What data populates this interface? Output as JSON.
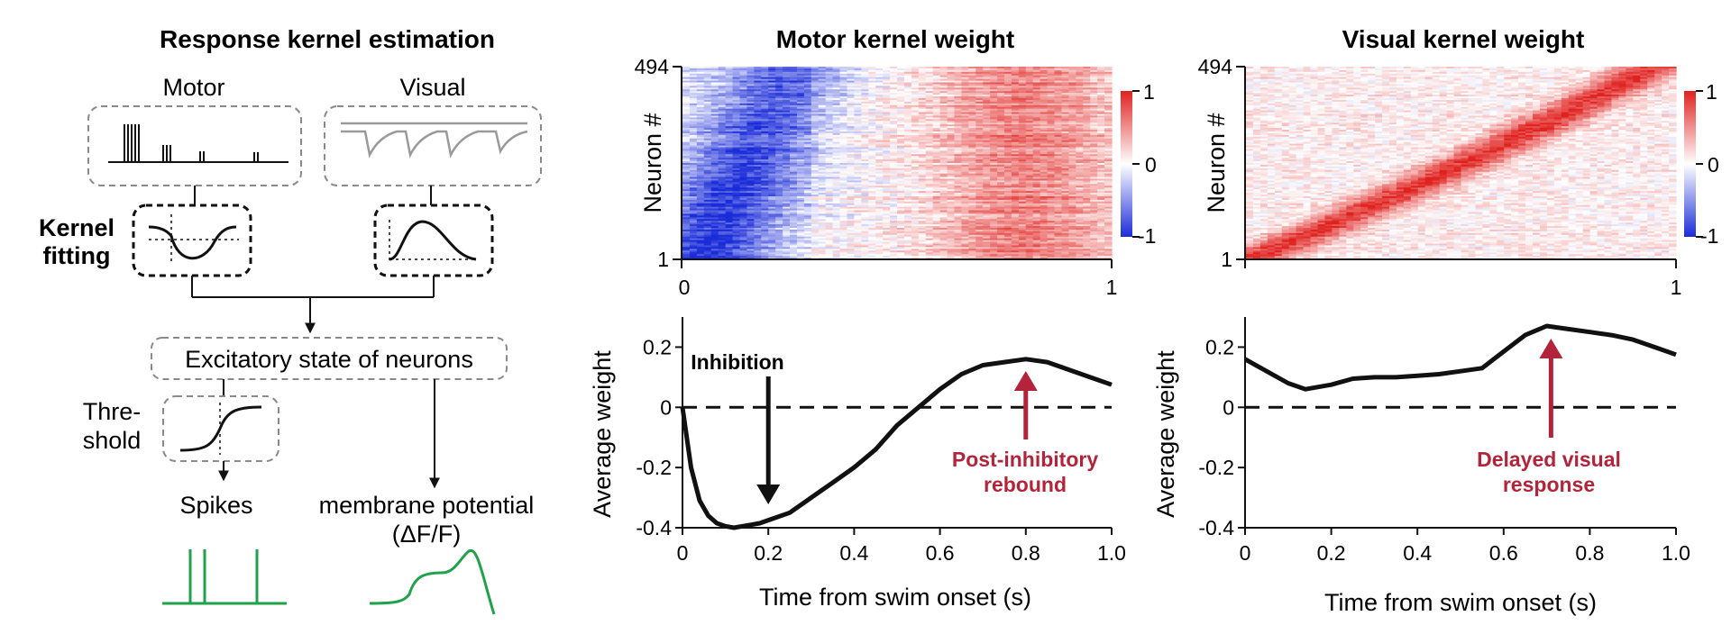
{
  "colors": {
    "ink": "#111111",
    "box_dash": "#8a8a8a",
    "visual_trace": "#9a9a9a",
    "green": "#1fa24a",
    "annotation_red": "#b3233a",
    "blue": "#1a2cd8",
    "red": "#e0221f"
  },
  "schematic": {
    "title": "Response kernel estimation",
    "motor_label": "Motor",
    "visual_label": "Visual",
    "kernel_fitting_label": [
      "Kernel",
      "fitting"
    ],
    "excitatory_label": "Excitatory state of neurons",
    "threshold_label": [
      "Thre-",
      "shold"
    ],
    "spikes_label": "Spikes",
    "membrane_label": "membrane potential",
    "membrane_sublabel": "(ΔF/F)"
  },
  "chart_data": [
    {
      "id": "motor-heatmap",
      "type": "heatmap",
      "title": "Motor kernel weight",
      "ylabel": "Neuron #",
      "y_ticks": [
        "1",
        "494"
      ],
      "x_ticks": [
        "0",
        "1"
      ],
      "xlim": [
        0,
        1
      ],
      "ylim": [
        1,
        494
      ],
      "n_neurons": 494,
      "colorbar": {
        "ticks": [
          "1",
          "0",
          "-1"
        ],
        "range": [
          -1,
          1
        ],
        "cmap": "blue-white-red"
      },
      "description_values": {
        "early_min_time": 0.12,
        "rebound_time": 0.8
      }
    },
    {
      "id": "visual-heatmap",
      "type": "heatmap",
      "title": "Visual kernel weight",
      "ylabel": "Neuron #",
      "y_ticks": [
        "1",
        "494"
      ],
      "x_ticks": [
        "0",
        "1"
      ],
      "xlim": [
        0,
        1
      ],
      "ylim": [
        1,
        494
      ],
      "n_neurons": 494,
      "colorbar": {
        "ticks": [
          "1",
          "0",
          "-1"
        ],
        "range": [
          -1,
          1
        ],
        "cmap": "blue-white-red"
      }
    },
    {
      "id": "motor-average",
      "type": "line",
      "xlabel": "Time from swim onset (s)",
      "ylabel": "Average weight",
      "xlim": [
        0,
        1
      ],
      "ylim": [
        -0.4,
        0.3
      ],
      "x_ticks": [
        "0",
        "0.2",
        "0.4",
        "0.6",
        "0.8",
        "1.0"
      ],
      "y_ticks": [
        "0.2",
        "0",
        "-0.2",
        "-0.4"
      ],
      "baseline": 0,
      "x": [
        0,
        0.02,
        0.04,
        0.06,
        0.08,
        0.1,
        0.12,
        0.14,
        0.16,
        0.18,
        0.2,
        0.25,
        0.3,
        0.35,
        0.4,
        0.45,
        0.5,
        0.55,
        0.6,
        0.65,
        0.7,
        0.75,
        0.8,
        0.85,
        0.9,
        0.95,
        1.0
      ],
      "y": [
        0,
        -0.2,
        -0.31,
        -0.36,
        -0.385,
        -0.395,
        -0.4,
        -0.395,
        -0.39,
        -0.385,
        -0.375,
        -0.35,
        -0.3,
        -0.25,
        -0.2,
        -0.14,
        -0.06,
        0.0,
        0.06,
        0.11,
        0.14,
        0.15,
        0.16,
        0.15,
        0.125,
        0.1,
        0.075
      ],
      "annotations": [
        {
          "text": "Inhibition",
          "x": 0.2,
          "y": -0.36
        },
        {
          "text": [
            "Post-inhibitory",
            "rebound"
          ],
          "x": 0.8,
          "y": 0.12
        }
      ]
    },
    {
      "id": "visual-average",
      "type": "line",
      "xlabel": "Time from swim onset (s)",
      "ylabel": "Average weight",
      "xlim": [
        0,
        1
      ],
      "ylim": [
        -0.4,
        0.3
      ],
      "x_ticks": [
        "0",
        "0.2",
        "0.4",
        "0.6",
        "0.8",
        "1.0"
      ],
      "y_ticks": [
        "0.2",
        "0",
        "-0.2",
        "-0.4"
      ],
      "baseline": 0,
      "x": [
        0,
        0.05,
        0.1,
        0.14,
        0.2,
        0.25,
        0.3,
        0.35,
        0.4,
        0.45,
        0.5,
        0.55,
        0.6,
        0.65,
        0.7,
        0.75,
        0.8,
        0.85,
        0.9,
        0.95,
        1.0
      ],
      "y": [
        0.16,
        0.12,
        0.08,
        0.06,
        0.075,
        0.095,
        0.1,
        0.1,
        0.105,
        0.11,
        0.12,
        0.13,
        0.185,
        0.24,
        0.27,
        0.26,
        0.25,
        0.24,
        0.225,
        0.2,
        0.175
      ],
      "annotations": [
        {
          "text": [
            "Delayed visual",
            "response"
          ],
          "x": 0.71,
          "y": 0.22
        }
      ]
    }
  ]
}
